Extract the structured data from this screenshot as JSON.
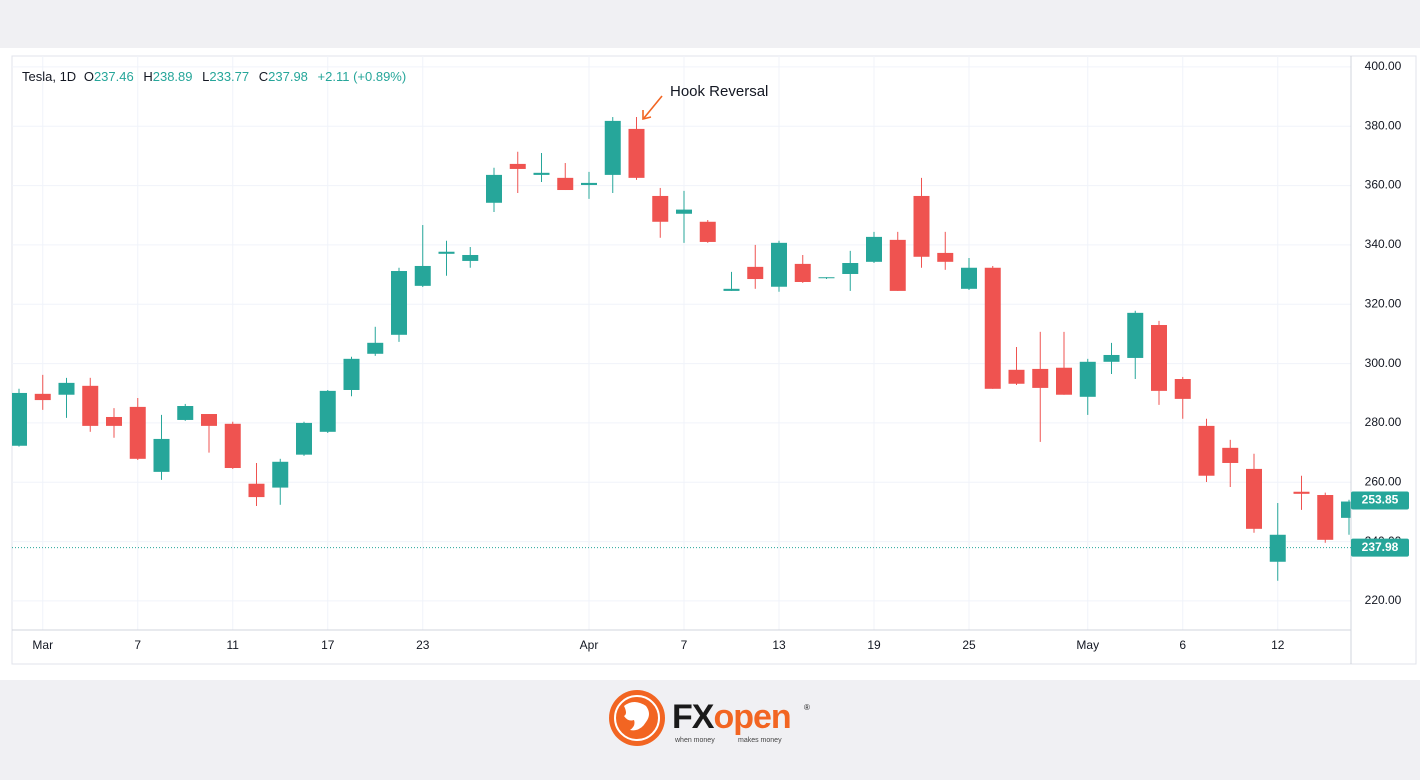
{
  "chart_data": {
    "type": "candlestick",
    "header": {
      "symbol": "Tesla, 1D",
      "o_key": "O",
      "o": "237.46",
      "h_key": "H",
      "h": "238.89",
      "l_key": "L",
      "l": "233.77",
      "c_key": "C",
      "c": "237.98",
      "change": "+2.11 (+0.89%)"
    },
    "annotation": "Hook Reversal",
    "categories": [
      null,
      "Mar",
      null,
      null,
      null,
      "7",
      null,
      null,
      null,
      "11",
      null,
      null,
      null,
      "17",
      null,
      null,
      null,
      "23",
      null,
      null,
      null,
      null,
      null,
      null,
      "Apr",
      null,
      null,
      null,
      "7",
      null,
      null,
      null,
      "13",
      null,
      null,
      null,
      "19",
      null,
      null,
      null,
      "25",
      null,
      null,
      null,
      null,
      "May",
      null,
      null,
      null,
      "6",
      null,
      null,
      null,
      "12",
      null,
      null,
      null
    ],
    "open": [
      272.3,
      289.8,
      289.5,
      292.5,
      282.0,
      285.4,
      263.5,
      281.0,
      283.0,
      279.7,
      259.5,
      258.2,
      269.3,
      277.0,
      291.1,
      303.3,
      309.7,
      326.2,
      337.0,
      334.6,
      354.2,
      367.3,
      363.6,
      362.6,
      360.2,
      363.6,
      379.1,
      356.5,
      350.5,
      347.8,
      324.5,
      332.6,
      325.9,
      333.6,
      328.8,
      330.2,
      334.3,
      341.7,
      356.5,
      337.3,
      325.2,
      332.3,
      297.9,
      298.2,
      298.6,
      288.8,
      300.6,
      301.9,
      313.0,
      294.8,
      279.0,
      271.6,
      264.5,
      233.2,
      256.8,
      255.7,
      248.0
    ],
    "high": [
      291.5,
      296.2,
      295.2,
      295.2,
      285.0,
      288.4,
      282.7,
      286.4,
      283.0,
      280.4,
      266.5,
      267.9,
      280.4,
      291.1,
      302.3,
      312.4,
      332.3,
      346.7,
      341.4,
      339.3,
      366.0,
      371.4,
      371.0,
      367.6,
      364.6,
      383.1,
      383.1,
      359.2,
      358.2,
      348.4,
      330.9,
      340.0,
      341.4,
      336.6,
      329.1,
      338.0,
      344.4,
      344.4,
      362.6,
      344.4,
      335.6,
      332.9,
      305.6,
      310.7,
      310.7,
      301.6,
      307.0,
      317.8,
      314.4,
      295.5,
      281.4,
      274.3,
      269.6,
      253.0,
      262.2,
      256.5,
      254.1
    ],
    "low": [
      272.0,
      284.4,
      281.7,
      277.0,
      275.0,
      267.5,
      260.8,
      280.7,
      270.0,
      264.5,
      252.0,
      252.4,
      268.9,
      276.6,
      289.0,
      302.6,
      307.3,
      325.8,
      329.6,
      332.3,
      351.1,
      357.5,
      361.2,
      358.5,
      355.5,
      357.5,
      361.9,
      342.4,
      340.7,
      340.7,
      324.5,
      325.2,
      324.2,
      327.2,
      328.5,
      324.5,
      333.9,
      324.5,
      332.3,
      331.6,
      324.8,
      291.5,
      292.8,
      273.6,
      289.5,
      282.7,
      296.5,
      294.8,
      286.1,
      281.4,
      260.1,
      258.4,
      243.0,
      226.8,
      250.7,
      239.6,
      242.3
    ],
    "close": [
      290.1,
      287.7,
      293.5,
      279.0,
      279.0,
      267.9,
      274.6,
      285.7,
      279.0,
      264.8,
      255.0,
      266.9,
      280.0,
      290.8,
      301.6,
      307.0,
      331.2,
      332.9,
      337.7,
      336.6,
      363.6,
      365.6,
      364.3,
      358.5,
      360.9,
      381.8,
      362.6,
      347.8,
      351.9,
      341.0,
      325.2,
      328.5,
      340.7,
      327.5,
      329.1,
      333.9,
      342.7,
      324.5,
      336.0,
      334.3,
      332.3,
      291.5,
      293.2,
      291.8,
      289.5,
      300.6,
      302.9,
      317.1,
      290.8,
      288.1,
      262.2,
      266.5,
      244.3,
      242.3,
      256.1,
      240.6,
      253.5
    ],
    "up_color": "#26a69a",
    "down_color": "#ef5350",
    "ylim": [
      210.2,
      403
    ],
    "yticks": [
      {
        "value": 220,
        "label": "220.00"
      },
      {
        "value": 240,
        "label": "240.00"
      },
      {
        "value": 260,
        "label": "260.00"
      },
      {
        "value": 280,
        "label": "280.00"
      },
      {
        "value": 300,
        "label": "300.00"
      },
      {
        "value": 320,
        "label": "320.00"
      },
      {
        "value": 340,
        "label": "340.00"
      },
      {
        "value": 360,
        "label": "360.00"
      },
      {
        "value": 380,
        "label": "380.00"
      },
      {
        "value": 400,
        "label": "400.00"
      }
    ],
    "price_labels": [
      {
        "value": 253.85,
        "label": "253.85"
      },
      {
        "value": 237.98,
        "label": "237.98"
      }
    ],
    "grid": true
  },
  "footer": {
    "brand_dark": "FX",
    "brand_orange": "open",
    "tagline_1": "when money",
    "tagline_2": "makes money"
  }
}
